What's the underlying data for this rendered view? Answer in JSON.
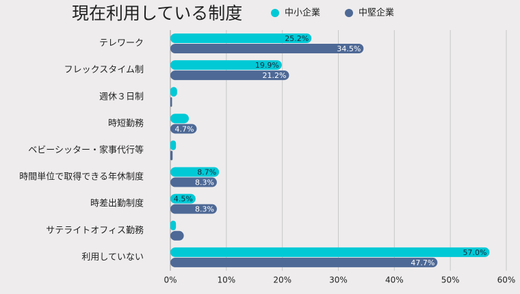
{
  "chart_data": {
    "type": "hbar",
    "title": "現在利用している制度",
    "categories": [
      "テレワーク",
      "フレックスタイム制",
      "週休３日制",
      "時短勤務",
      "ベビーシッター・家事代行等",
      "時間単位で取得できる年休制度",
      "時差出勤制度",
      "サテライトオフィス勤務",
      "利用していない"
    ],
    "series": [
      {
        "name": "中小企業",
        "color": "#00c9d6",
        "values": [
          25.2,
          19.9,
          1.2,
          3.3,
          1.0,
          8.7,
          4.5,
          1.0,
          57.0
        ],
        "value_labels": [
          "25.2%",
          "19.9%",
          null,
          null,
          null,
          "8.7%",
          "4.5%",
          null,
          "57.0%"
        ]
      },
      {
        "name": "中堅企業",
        "color": "#4e6996",
        "values": [
          34.5,
          21.2,
          0.3,
          4.7,
          0.4,
          8.3,
          8.3,
          2.4,
          47.7
        ],
        "value_labels": [
          "34.5%",
          "21.2%",
          null,
          "4.7%",
          null,
          "8.3%",
          "8.3%",
          null,
          "47.7%"
        ]
      }
    ],
    "xlim": [
      0,
      60
    ],
    "xticks": [
      {
        "value": 0,
        "label": "0%"
      },
      {
        "value": 10,
        "label": "10%"
      },
      {
        "value": 20,
        "label": "20%"
      },
      {
        "value": 30,
        "label": "30%"
      },
      {
        "value": 40,
        "label": "40%"
      },
      {
        "value": 50,
        "label": "50%"
      },
      {
        "value": 60,
        "label": "60%"
      }
    ],
    "grid": true
  }
}
